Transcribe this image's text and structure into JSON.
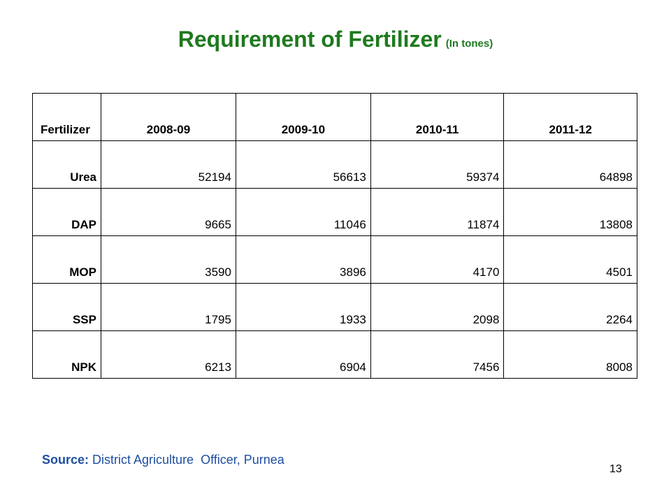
{
  "title": {
    "main": "Requirement of Fertilizer",
    "unit": "(In tones)"
  },
  "table": {
    "header": [
      "Fertilizer",
      "2008-09",
      "2009-10",
      "2010-11",
      "2011-12"
    ],
    "rows": [
      {
        "name": "Urea",
        "values": [
          "52194",
          "56613",
          "59374",
          "64898"
        ]
      },
      {
        "name": "DAP",
        "values": [
          "9665",
          "11046",
          "11874",
          "13808"
        ]
      },
      {
        "name": "MOP",
        "values": [
          "3590",
          "3896",
          "4170",
          "4501"
        ]
      },
      {
        "name": "SSP",
        "values": [
          "1795",
          "1933",
          "2098",
          "2264"
        ]
      },
      {
        "name": "NPK",
        "values": [
          "6213",
          "6904",
          "7456",
          "8008"
        ]
      }
    ]
  },
  "source": {
    "label": "Source:",
    "text": " District Agriculture  Officer, Purnea"
  },
  "page_number": "13",
  "colors": {
    "title": "#1e7a1e",
    "source": "#1f4fa0"
  }
}
